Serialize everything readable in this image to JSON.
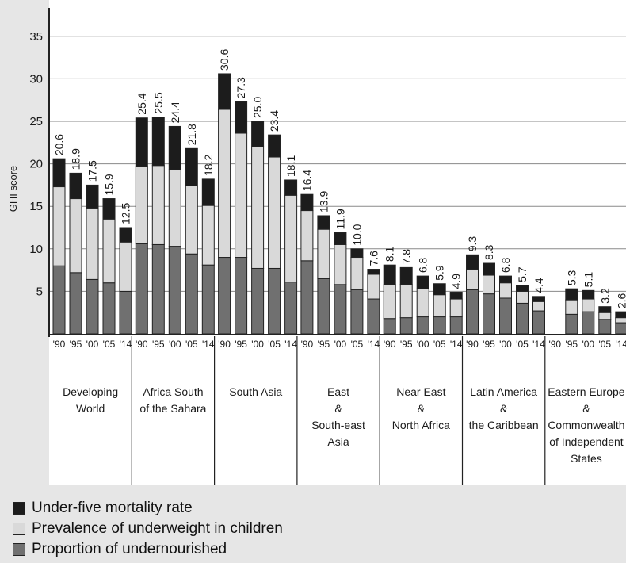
{
  "chart_data": {
    "type": "bar",
    "stacked": true,
    "ylabel": "GHI score",
    "yticks": [
      5,
      10,
      15,
      20,
      25,
      30,
      35
    ],
    "ylim": [
      0,
      40
    ],
    "grid": true,
    "legend_position": "bottom-left",
    "colors": {
      "mortality": "#1c1c1c",
      "underweight": "#d9d9d9",
      "undernourished": "#707070",
      "plot_bg": "#ffffff",
      "page_bg": "#e6e6e6"
    },
    "legend": [
      {
        "key": "mortality",
        "label": "Under-five mortality rate"
      },
      {
        "key": "underweight",
        "label": "Prevalence of underweight in children"
      },
      {
        "key": "undernourished",
        "label": "Proportion of undernourished"
      }
    ],
    "groups": [
      {
        "name_lines": [
          "Developing",
          "World"
        ],
        "years": [
          "'90",
          "'95",
          "'00",
          "'05",
          "'14"
        ],
        "totals": [
          "20.6",
          "18.9",
          "17.5",
          "15.9",
          "12.5"
        ],
        "undernourished": [
          8.0,
          7.2,
          6.4,
          6.0,
          5.0
        ],
        "underweight": [
          9.3,
          8.7,
          8.4,
          7.5,
          5.8
        ],
        "mortality": [
          3.3,
          3.0,
          2.7,
          2.4,
          1.7
        ]
      },
      {
        "name_lines": [
          "Africa South",
          "of the Sahara"
        ],
        "years": [
          "'90",
          "'95",
          "'00",
          "'05",
          "'14"
        ],
        "totals": [
          "25.4",
          "25.5",
          "24.4",
          "21.8",
          "18.2"
        ],
        "undernourished": [
          10.6,
          10.5,
          10.3,
          9.4,
          8.1
        ],
        "underweight": [
          9.1,
          9.3,
          9.0,
          8.0,
          7.0
        ],
        "mortality": [
          5.7,
          5.7,
          5.1,
          4.4,
          3.1
        ]
      },
      {
        "name_lines": [
          "South Asia"
        ],
        "years": [
          "'90",
          "'95",
          "'00",
          "'05",
          "'14"
        ],
        "totals": [
          "30.6",
          "27.3",
          "25.0",
          "23.4",
          "18.1"
        ],
        "undernourished": [
          9.0,
          9.0,
          7.7,
          7.7,
          6.1
        ],
        "underweight": [
          17.4,
          14.6,
          14.3,
          13.1,
          10.2
        ],
        "mortality": [
          4.2,
          3.7,
          3.0,
          2.6,
          1.8
        ]
      },
      {
        "name_lines": [
          "East",
          "&",
          "South-east",
          "Asia"
        ],
        "years": [
          "'90",
          "'95",
          "'00",
          "'05",
          "'14"
        ],
        "totals": [
          "16.4",
          "13.9",
          "11.9",
          "10.0",
          "7.6"
        ],
        "undernourished": [
          8.6,
          6.5,
          5.8,
          5.2,
          4.1
        ],
        "underweight": [
          5.9,
          5.8,
          4.7,
          3.8,
          2.9
        ],
        "mortality": [
          1.9,
          1.6,
          1.4,
          1.0,
          0.6
        ]
      },
      {
        "name_lines": [
          "Near East",
          "&",
          "North Africa"
        ],
        "years": [
          "'90",
          "'95",
          "'00",
          "'05",
          "'14"
        ],
        "totals": [
          "8.1",
          "7.8",
          "6.8",
          "5.9",
          "4.9"
        ],
        "undernourished": [
          1.8,
          1.9,
          2.0,
          2.0,
          2.0
        ],
        "underweight": [
          4.0,
          3.9,
          3.3,
          2.6,
          2.1
        ],
        "mortality": [
          2.3,
          2.0,
          1.5,
          1.3,
          0.8
        ]
      },
      {
        "name_lines": [
          "Latin America",
          "&",
          "the Caribbean"
        ],
        "years": [
          "'90",
          "'95",
          "'00",
          "'05",
          "'14"
        ],
        "totals": [
          "9.3",
          "8.3",
          "6.8",
          "5.7",
          "4.4"
        ],
        "undernourished": [
          5.2,
          4.7,
          4.2,
          3.6,
          2.7
        ],
        "underweight": [
          2.4,
          2.2,
          1.8,
          1.4,
          1.1
        ],
        "mortality": [
          1.7,
          1.4,
          0.8,
          0.7,
          0.6
        ]
      },
      {
        "name_lines": [
          "Eastern Europe",
          "&",
          "Commonwealth",
          "of Independent",
          "States"
        ],
        "years": [
          "'90",
          "'95",
          "'00",
          "'05",
          "'14"
        ],
        "totals": [
          null,
          "5.3",
          "5.1",
          "3.2",
          "2.6"
        ],
        "undernourished": [
          null,
          2.3,
          2.6,
          1.7,
          1.3
        ],
        "underweight": [
          null,
          1.7,
          1.5,
          0.8,
          0.6
        ],
        "mortality": [
          null,
          1.3,
          1.0,
          0.7,
          0.7
        ]
      }
    ]
  }
}
